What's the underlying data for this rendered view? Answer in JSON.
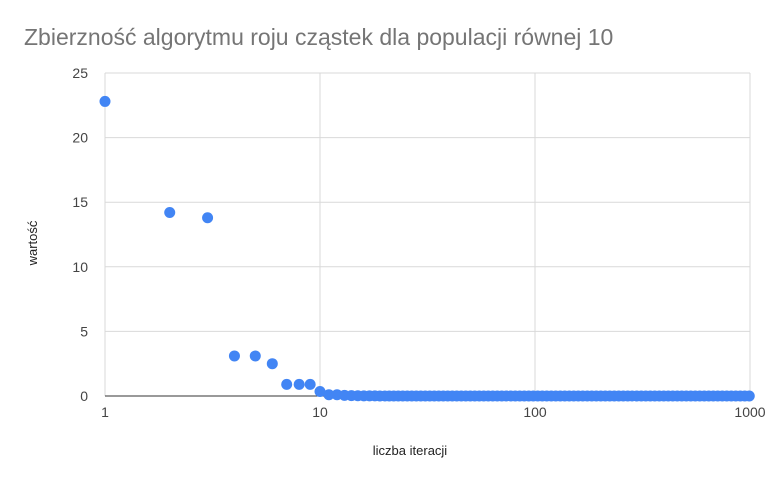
{
  "chart_data": {
    "type": "scatter",
    "title": "Zbierzność algorytmu roju cząstek dla populacji równej 10",
    "xlabel": "liczba iteracji",
    "ylabel": "wartość",
    "x_scale": "log",
    "xlim": [
      1,
      1000
    ],
    "ylim": [
      0,
      25
    ],
    "x_ticks": [
      "1",
      "10",
      "100",
      "1000"
    ],
    "y_ticks": [
      "0",
      "5",
      "10",
      "15",
      "20",
      "25"
    ],
    "grid": true,
    "legend": "none",
    "color": "#4285f4",
    "points": [
      {
        "x": 1,
        "y": 22.8
      },
      {
        "x": 2,
        "y": 14.2
      },
      {
        "x": 3,
        "y": 13.8
      },
      {
        "x": 4,
        "y": 3.1
      },
      {
        "x": 5,
        "y": 3.1
      },
      {
        "x": 6,
        "y": 2.5
      },
      {
        "x": 7,
        "y": 0.9
      },
      {
        "x": 8,
        "y": 0.9
      },
      {
        "x": 9,
        "y": 0.9
      },
      {
        "x": 10,
        "y": 0.35
      },
      {
        "x": 11,
        "y": 0.1
      },
      {
        "x": 12,
        "y": 0.1
      },
      {
        "x": 13,
        "y": 0.05
      },
      {
        "x": 14,
        "y": 0.03
      },
      {
        "x": 15,
        "y": 0.02
      },
      {
        "x": 16,
        "y": 0.01
      },
      {
        "x": 17,
        "y": 0.01
      },
      {
        "x": 18,
        "y": 0.01
      },
      {
        "x": 19,
        "y": 0
      },
      {
        "x": 20,
        "y": 0
      }
    ],
    "tail": {
      "x_from": 21,
      "x_to": 1000,
      "y": 0
    }
  }
}
